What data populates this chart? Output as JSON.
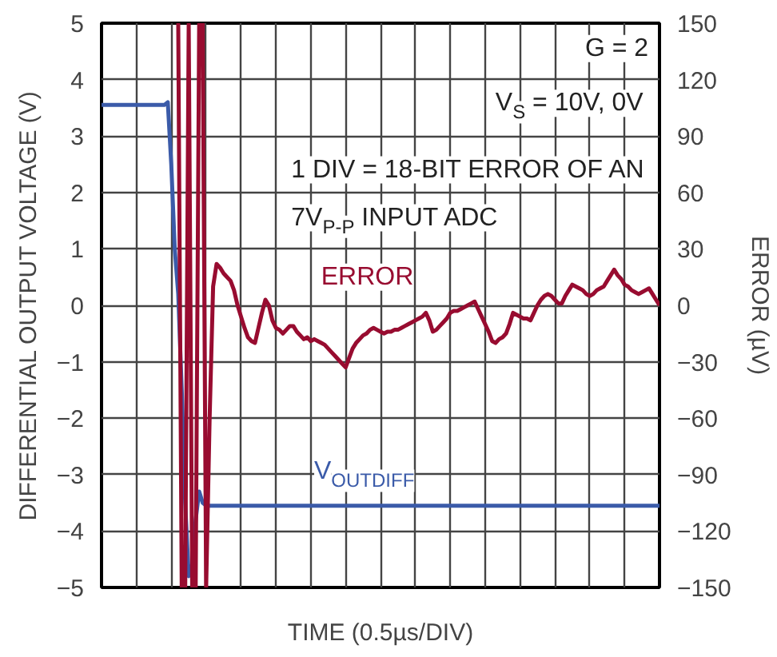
{
  "chart_data": {
    "type": "line",
    "xlabel": "TIME (0.5µs/DIV)",
    "ylabel": "DIFFERENTIAL OUTPUT VOLTAGE (V)",
    "y2label": "ERROR (µV)",
    "categories": [
      null,
      null,
      null,
      null,
      null,
      null,
      null,
      null,
      null,
      null,
      null,
      null,
      null,
      null,
      null,
      null,
      null,
      null,
      null,
      null,
      null,
      null,
      null,
      null,
      null,
      null,
      null,
      null,
      null,
      null,
      null,
      null,
      null,
      null,
      null,
      null,
      null,
      null,
      null,
      null,
      null,
      null,
      null,
      null,
      null,
      null,
      null,
      null,
      null,
      null,
      null,
      null,
      null,
      null,
      null,
      null,
      null,
      null,
      null,
      null,
      null,
      null,
      null,
      null,
      null,
      null,
      null,
      null,
      null,
      null,
      null,
      null,
      null,
      null,
      null,
      null,
      null,
      null,
      null,
      null,
      null,
      null,
      null,
      null,
      null,
      null,
      null,
      null,
      null,
      null,
      null,
      null,
      null,
      null,
      null,
      null,
      null,
      null,
      null,
      null,
      null,
      null,
      null,
      null,
      null,
      null,
      null,
      null,
      null,
      null,
      null,
      null,
      null,
      null,
      null,
      null,
      null,
      null,
      null,
      null,
      null,
      null,
      null,
      null,
      null,
      null,
      null,
      null,
      null,
      null,
      null,
      null,
      null,
      null,
      null,
      null,
      null,
      null,
      null,
      null,
      null,
      null,
      null,
      null,
      null,
      null,
      null,
      null,
      null,
      null,
      null,
      null,
      null,
      null,
      null,
      null,
      null,
      null,
      null,
      null,
      null
    ],
    "ylim": [
      -5,
      5
    ],
    "yticks": [
      -5,
      -4,
      -3,
      -2,
      -1,
      0,
      1,
      2,
      3,
      4,
      5
    ],
    "y2lim": [
      -150,
      150
    ],
    "y2ticks": [
      -150,
      -120,
      -90,
      -60,
      -30,
      0,
      30,
      60,
      90,
      120,
      150
    ],
    "grid": true,
    "marker": "none",
    "line_style": "solid",
    "tick_labels": "y",
    "annotations": [
      "G = 2",
      "V$_{S}$ = 10V, 0V",
      "1 DIV = 18-BIT ERROR OF AN",
      "7V$_{P-P}$ INPUT ADC"
    ],
    "series": [
      {
        "name": "V$_{OUTDIFF}$",
        "color": "#3b5ba9",
        "values": [
          3.55,
          3.55,
          3.55,
          3.55,
          3.55,
          3.55,
          3.55,
          3.55,
          3.55,
          3.55,
          3.55,
          3.55,
          3.55,
          3.55,
          3.55,
          3.55,
          3.55,
          3.55,
          3.55,
          3.6,
          2.5,
          1.0,
          0.2,
          -1.5,
          -3.5,
          -4.8,
          -4.6,
          -3.8,
          -3.3,
          -3.5,
          -3.55,
          -3.55,
          -3.55,
          -3.55,
          -3.55,
          -3.55,
          -3.55,
          -3.55,
          -3.55,
          -3.55,
          -3.55,
          -3.55,
          -3.55,
          -3.55,
          -3.55,
          -3.55,
          -3.55,
          -3.55,
          -3.55,
          -3.55,
          -3.55,
          -3.55,
          -3.55,
          -3.55,
          -3.55,
          -3.55,
          -3.55,
          -3.55,
          -3.55,
          -3.55,
          -3.55,
          -3.55,
          -3.55,
          -3.55,
          -3.55,
          -3.55,
          -3.55,
          -3.55,
          -3.55,
          -3.55,
          -3.55,
          -3.55,
          -3.55,
          -3.55,
          -3.55,
          -3.55,
          -3.55,
          -3.55,
          -3.55,
          -3.55,
          -3.55,
          -3.55,
          -3.55,
          -3.55,
          -3.55,
          -3.55,
          -3.55,
          -3.55,
          -3.55,
          -3.55,
          -3.55,
          -3.55,
          -3.55,
          -3.55,
          -3.55,
          -3.55,
          -3.55,
          -3.55,
          -3.55,
          -3.55,
          -3.55,
          -3.55,
          -3.55,
          -3.55,
          -3.55,
          -3.55,
          -3.55,
          -3.55,
          -3.55,
          -3.55,
          -3.55,
          -3.55,
          -3.55,
          -3.55,
          -3.55,
          -3.55,
          -3.55,
          -3.55,
          -3.55,
          -3.55,
          -3.55,
          -3.55,
          -3.55,
          -3.55,
          -3.55,
          -3.55,
          -3.55,
          -3.55,
          -3.55,
          -3.55,
          -3.55,
          -3.55,
          -3.55,
          -3.55,
          -3.55,
          -3.55,
          -3.55,
          -3.55,
          -3.55,
          -3.55,
          -3.55,
          -3.55,
          -3.55,
          -3.55,
          -3.55,
          -3.55,
          -3.55,
          -3.55,
          -3.55,
          -3.55,
          -3.55,
          -3.55,
          -3.55,
          -3.55,
          -3.55,
          -3.55,
          -3.55,
          -3.55,
          -3.55,
          -3.55,
          -3.55
        ]
      },
      {
        "name": "ERROR",
        "color": "#980c30",
        "axis": "y2",
        "values": [
          null,
          null,
          null,
          null,
          null,
          null,
          null,
          null,
          null,
          null,
          null,
          null,
          null,
          null,
          null,
          null,
          null,
          null,
          null,
          null,
          null,
          null,
          150,
          -150,
          -150,
          150,
          -150,
          -150,
          150,
          150,
          -150,
          -60,
          10,
          22,
          20,
          17,
          15,
          13,
          8,
          0,
          -6,
          -12,
          -17,
          -19,
          -20,
          -12,
          -4,
          3,
          0,
          -8,
          -12,
          -13,
          -15,
          -13,
          -11,
          -11,
          -14,
          -16,
          -18,
          -17,
          -19,
          -18,
          -19,
          -20,
          -21,
          -23,
          -25,
          -27,
          -29,
          -31,
          -33,
          -28,
          -23,
          -20,
          -18,
          -16,
          -15,
          -13,
          -12,
          -13,
          -14,
          -15,
          -14,
          -14,
          -13,
          -13,
          -12,
          -11,
          -10,
          -9,
          -8,
          -7,
          -6,
          -4,
          -8,
          -14,
          -13,
          -11,
          -9,
          -7,
          -4,
          -3,
          -3,
          -2,
          -1,
          0,
          1,
          2,
          -2,
          -6,
          -10,
          -14,
          -19,
          -20,
          -18,
          -17,
          -15,
          -10,
          -4,
          -5,
          -6,
          -7,
          -7,
          -8,
          -4,
          0,
          3,
          5,
          6,
          5,
          3,
          1,
          1,
          5,
          8,
          11,
          10,
          9,
          8,
          6,
          5,
          6,
          8,
          9,
          10,
          13,
          16,
          19,
          16,
          14,
          11,
          10,
          8,
          7,
          6,
          7,
          8,
          9,
          6,
          3,
          0
        ]
      }
    ]
  }
}
